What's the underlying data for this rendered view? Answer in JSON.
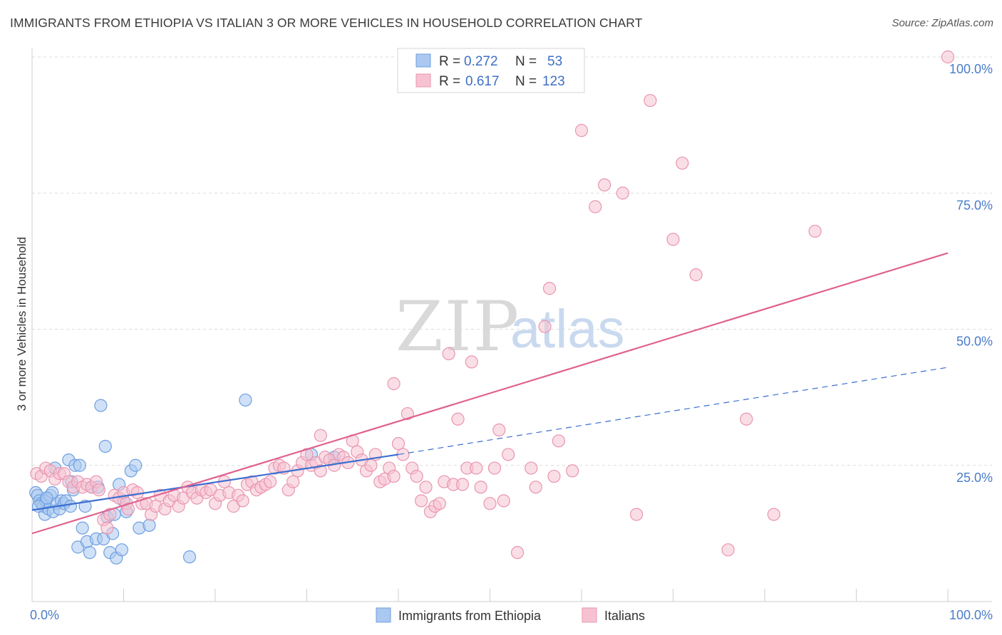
{
  "header": {
    "title": "IMMIGRANTS FROM ETHIOPIA VS ITALIAN 3 OR MORE VEHICLES IN HOUSEHOLD CORRELATION CHART",
    "source": "Source: ZipAtlas.com"
  },
  "watermark": {
    "zip": "ZIP",
    "atlas": "atlas"
  },
  "chart_data": {
    "type": "scatter",
    "xlabel": "",
    "ylabel": "3 or more Vehicles in Household",
    "xlim": [
      0,
      100
    ],
    "ylim": [
      0,
      100
    ],
    "x_tick_labels": {
      "left": "0.0%",
      "right": "100.0%"
    },
    "y_ticks": [
      {
        "value": 25,
        "label": "25.0%"
      },
      {
        "value": 50,
        "label": "50.0%"
      },
      {
        "value": 75,
        "label": "75.0%"
      },
      {
        "value": 100,
        "label": "100.0%"
      }
    ],
    "grid": true,
    "legend_placement": "top-center",
    "legend": [
      {
        "series": "Immigrants from Ethiopia",
        "r_label": "R =",
        "r_value": "0.272",
        "n_label": "N =",
        "n_value": "53"
      },
      {
        "series": "Italians",
        "r_label": "R =",
        "r_value": "0.617",
        "n_label": "N =",
        "n_value": "123"
      }
    ],
    "series": [
      {
        "name": "Immigrants from Ethiopia",
        "color": "#6f9fe0",
        "fill": "#aac8f0",
        "trend_color": "#3b6fd0",
        "trend": {
          "x0": 0,
          "y0": 16.8,
          "x1": 40,
          "y1": 27.0,
          "dash_to_x": 100,
          "dash_to_y": 43.0
        },
        "points": [
          [
            0.4,
            20
          ],
          [
            0.6,
            19.5
          ],
          [
            0.8,
            18.5
          ],
          [
            1.0,
            18
          ],
          [
            1.2,
            17.5
          ],
          [
            1.4,
            16
          ],
          [
            1.5,
            18.5
          ],
          [
            1.8,
            17
          ],
          [
            2.0,
            19.5
          ],
          [
            2.2,
            20
          ],
          [
            2.3,
            16.5
          ],
          [
            2.5,
            24.5
          ],
          [
            2.7,
            18
          ],
          [
            3.0,
            17
          ],
          [
            3.2,
            18.5
          ],
          [
            3.5,
            18
          ],
          [
            3.7,
            18.5
          ],
          [
            4.0,
            26
          ],
          [
            4.2,
            17.5
          ],
          [
            4.3,
            22
          ],
          [
            4.5,
            20.5
          ],
          [
            4.7,
            25
          ],
          [
            5.0,
            10
          ],
          [
            5.2,
            25
          ],
          [
            5.5,
            13.5
          ],
          [
            5.8,
            17.5
          ],
          [
            6.0,
            11
          ],
          [
            6.3,
            9
          ],
          [
            6.5,
            21
          ],
          [
            7.0,
            11.5
          ],
          [
            7.2,
            21
          ],
          [
            7.5,
            36
          ],
          [
            7.8,
            11.5
          ],
          [
            8.0,
            28.5
          ],
          [
            8.2,
            15.5
          ],
          [
            8.5,
            9
          ],
          [
            8.8,
            12.5
          ],
          [
            9.0,
            16
          ],
          [
            9.2,
            8
          ],
          [
            9.5,
            21.5
          ],
          [
            9.8,
            9.5
          ],
          [
            10.0,
            18.5
          ],
          [
            10.3,
            16.5
          ],
          [
            10.8,
            24
          ],
          [
            11.3,
            25
          ],
          [
            11.7,
            13.5
          ],
          [
            12.8,
            14
          ],
          [
            17.2,
            8.2
          ],
          [
            23.3,
            37
          ],
          [
            30.5,
            27
          ],
          [
            33.0,
            26.5
          ],
          [
            0.7,
            17.5
          ],
          [
            1.6,
            19
          ]
        ]
      },
      {
        "name": "Italians",
        "color": "#e995b0",
        "fill": "#f6c2d2",
        "trend_color": "#e0628e",
        "trend": {
          "x0": 0,
          "y0": 12.5,
          "x1": 100,
          "y1": 64.0
        },
        "points": [
          [
            0.5,
            23.5
          ],
          [
            1.0,
            23
          ],
          [
            1.5,
            24.5
          ],
          [
            2.0,
            24
          ],
          [
            2.5,
            22.5
          ],
          [
            3.0,
            23.5
          ],
          [
            3.5,
            23.5
          ],
          [
            4.0,
            22
          ],
          [
            4.5,
            21
          ],
          [
            5.0,
            22
          ],
          [
            5.5,
            21
          ],
          [
            6.0,
            21.5
          ],
          [
            6.5,
            21
          ],
          [
            7.0,
            22
          ],
          [
            7.3,
            20.5
          ],
          [
            7.8,
            15
          ],
          [
            8.2,
            13.5
          ],
          [
            8.5,
            16
          ],
          [
            9.0,
            19.5
          ],
          [
            9.5,
            19
          ],
          [
            10.0,
            20
          ],
          [
            10.3,
            18
          ],
          [
            10.5,
            17
          ],
          [
            11.0,
            20.5
          ],
          [
            11.5,
            20
          ],
          [
            12.0,
            18
          ],
          [
            12.5,
            18
          ],
          [
            13.0,
            16
          ],
          [
            13.5,
            17.5
          ],
          [
            14.0,
            19.5
          ],
          [
            14.5,
            17
          ],
          [
            15.0,
            18.5
          ],
          [
            15.5,
            19.5
          ],
          [
            16.0,
            17.5
          ],
          [
            16.5,
            19
          ],
          [
            17.0,
            21
          ],
          [
            17.5,
            20
          ],
          [
            18.0,
            19
          ],
          [
            18.5,
            20.5
          ],
          [
            19.0,
            20
          ],
          [
            19.5,
            20.5
          ],
          [
            20.0,
            18
          ],
          [
            20.5,
            19.5
          ],
          [
            21.0,
            22
          ],
          [
            21.5,
            20
          ],
          [
            22.0,
            17.5
          ],
          [
            22.5,
            19.5
          ],
          [
            23.0,
            18.5
          ],
          [
            23.5,
            21.5
          ],
          [
            24.0,
            22
          ],
          [
            24.5,
            20.5
          ],
          [
            25.0,
            21
          ],
          [
            25.5,
            21.5
          ],
          [
            26.0,
            22
          ],
          [
            26.5,
            24.5
          ],
          [
            27.0,
            25
          ],
          [
            27.5,
            24.5
          ],
          [
            28.0,
            20.5
          ],
          [
            28.5,
            22
          ],
          [
            29.0,
            24
          ],
          [
            29.5,
            25.5
          ],
          [
            30.0,
            27
          ],
          [
            30.5,
            25
          ],
          [
            31.0,
            25.5
          ],
          [
            31.5,
            24
          ],
          [
            32.0,
            26.5
          ],
          [
            32.5,
            26
          ],
          [
            33.0,
            25
          ],
          [
            33.5,
            27
          ],
          [
            34.0,
            26.5
          ],
          [
            34.5,
            25.5
          ],
          [
            35.0,
            29.5
          ],
          [
            35.5,
            27.5
          ],
          [
            36.0,
            26
          ],
          [
            36.5,
            24
          ],
          [
            37.0,
            25
          ],
          [
            37.5,
            27
          ],
          [
            38.0,
            22
          ],
          [
            38.5,
            22.5
          ],
          [
            39.0,
            24.5
          ],
          [
            39.5,
            23
          ],
          [
            40.0,
            29
          ],
          [
            40.5,
            27
          ],
          [
            41.0,
            34.5
          ],
          [
            41.5,
            24.5
          ],
          [
            42.0,
            23
          ],
          [
            42.5,
            18.5
          ],
          [
            43.0,
            21
          ],
          [
            43.5,
            16.5
          ],
          [
            44.0,
            17.5
          ],
          [
            44.5,
            18
          ],
          [
            45.0,
            22
          ],
          [
            45.5,
            45.5
          ],
          [
            46.0,
            21.5
          ],
          [
            46.5,
            33.5
          ],
          [
            47.0,
            21.5
          ],
          [
            47.5,
            24.5
          ],
          [
            48.0,
            44
          ],
          [
            48.5,
            24.5
          ],
          [
            49.0,
            21
          ],
          [
            50.0,
            18
          ],
          [
            50.5,
            24.5
          ],
          [
            51.0,
            31.5
          ],
          [
            51.5,
            18.5
          ],
          [
            52.0,
            27
          ],
          [
            53.0,
            9
          ],
          [
            54.5,
            24.5
          ],
          [
            55.0,
            21
          ],
          [
            56.0,
            50.5
          ],
          [
            57.0,
            23
          ],
          [
            57.5,
            29.5
          ],
          [
            59.0,
            24
          ],
          [
            60.0,
            86.5
          ],
          [
            61.5,
            72.5
          ],
          [
            62.5,
            76.5
          ],
          [
            64.5,
            75
          ],
          [
            66.0,
            16
          ],
          [
            67.5,
            92
          ],
          [
            70.0,
            66.5
          ],
          [
            71.0,
            80.5
          ],
          [
            72.5,
            60
          ],
          [
            76.0,
            9.5
          ],
          [
            78.0,
            33.5
          ],
          [
            81.0,
            16
          ],
          [
            85.5,
            68
          ],
          [
            100.0,
            100
          ],
          [
            56.5,
            57.5
          ],
          [
            39.5,
            40
          ],
          [
            31.5,
            30.5
          ]
        ]
      }
    ]
  },
  "bottom_legend": [
    {
      "label": "Immigrants from Ethiopia",
      "color": "#aac8f0",
      "stroke": "#6f9fe0"
    },
    {
      "label": "Italians",
      "color": "#f6c2d2",
      "stroke": "#e995b0"
    }
  ]
}
